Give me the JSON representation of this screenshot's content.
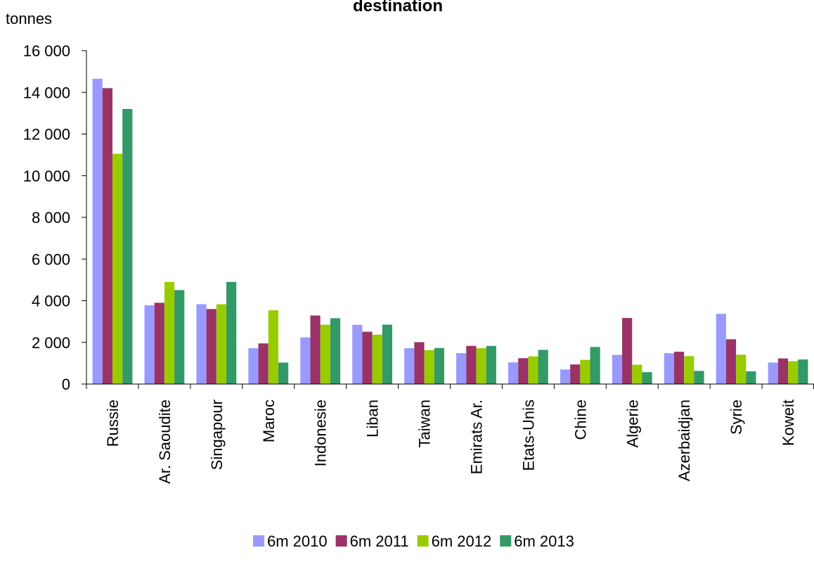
{
  "chart_data": {
    "type": "bar",
    "title": "destination",
    "ylabel": "tonnes",
    "xlabel": "",
    "ylim": [
      0,
      16000
    ],
    "yticks": [
      0,
      2000,
      4000,
      6000,
      8000,
      10000,
      12000,
      14000,
      16000
    ],
    "ytick_labels": [
      "0",
      "2 000",
      "4 000",
      "6 000",
      "8 000",
      "10 000",
      "12 000",
      "14 000",
      "16 000"
    ],
    "grid": false,
    "legend_position": "bottom",
    "categories": [
      "Russie",
      "Ar. Saoudite",
      "Singapour",
      "Maroc",
      "Indonesie",
      "Liban",
      "Taiwan",
      "Emirats Ar.",
      "Etats-Unis",
      "Chine",
      "Algerie",
      "Azerbaidjan",
      "Syrie",
      "Koweit"
    ],
    "series": [
      {
        "name": "6m 2010",
        "color": "#9999ff",
        "values": [
          14650,
          3780,
          3830,
          1720,
          2240,
          2840,
          1720,
          1480,
          1040,
          700,
          1400,
          1480,
          3370,
          1030
        ]
      },
      {
        "name": "6m 2011",
        "color": "#993366",
        "values": [
          14200,
          3900,
          3600,
          1950,
          3290,
          2510,
          2010,
          1830,
          1240,
          940,
          3170,
          1550,
          2150,
          1230
        ]
      },
      {
        "name": "6m 2012",
        "color": "#99cc00",
        "values": [
          11050,
          4900,
          3830,
          3540,
          2850,
          2370,
          1630,
          1720,
          1330,
          1160,
          930,
          1340,
          1410,
          1100
        ]
      },
      {
        "name": "6m 2013",
        "color": "#339966",
        "values": [
          13200,
          4510,
          4900,
          1030,
          3160,
          2850,
          1730,
          1830,
          1640,
          1780,
          570,
          630,
          610,
          1180
        ]
      }
    ]
  }
}
